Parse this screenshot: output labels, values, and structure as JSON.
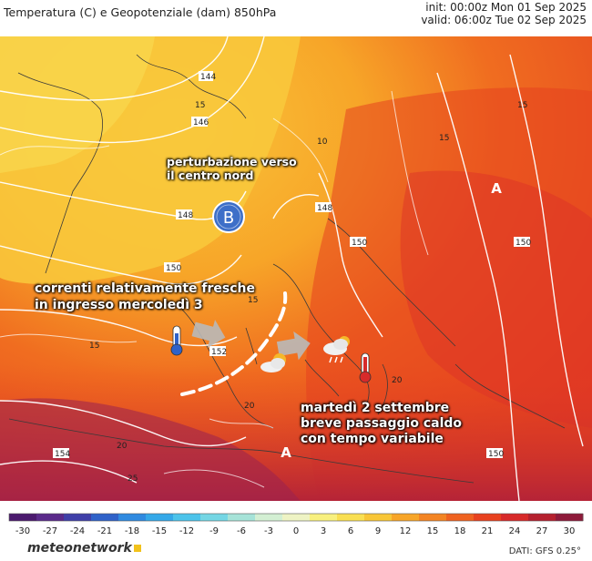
{
  "header": {
    "title": "Temperatura (C) e Geopotenziale (dam) 850hPa",
    "init": "init: 00:00z Mon 01 Sep 2025",
    "valid": "valid: 06:00z Tue 02 Sep 2025"
  },
  "map": {
    "contour_labels": [
      "144",
      "146",
      "148",
      "150",
      "152",
      "154",
      "148",
      "150",
      "150",
      "150",
      "15",
      "10",
      "15",
      "15",
      "15",
      "20",
      "20",
      "20",
      "25",
      "15"
    ],
    "pressure_centers": [
      {
        "label": "B",
        "kind": "low"
      },
      {
        "label": "A",
        "kind": "high"
      },
      {
        "label": "A",
        "kind": "high"
      }
    ],
    "callouts": {
      "perturbation_line1": "perturbazione verso",
      "perturbation_line2": "il centro nord",
      "fresh_line1": "correnti relativamente fresche",
      "fresh_line2": "in ingresso mercoledì 3",
      "warm_line1": "martedì 2 settembre",
      "warm_line2": "breve passaggio caldo",
      "warm_line3": "con tempo variabile"
    },
    "icons": [
      "cold-thermometer-icon",
      "partly-cloudy-icon",
      "rain-cloud-icon",
      "hot-thermometer-icon",
      "arrow-icon",
      "cold-front-dashed-line"
    ]
  },
  "legend": {
    "ticks": [
      "-30",
      "-27",
      "-24",
      "-21",
      "-18",
      "-15",
      "-12",
      "-9",
      "-6",
      "-3",
      "0",
      "3",
      "6",
      "9",
      "12",
      "15",
      "18",
      "21",
      "24",
      "27",
      "30"
    ],
    "colors": [
      "#4b1a6e",
      "#5a2a8a",
      "#3f3fa8",
      "#2f62c9",
      "#2f8ae0",
      "#34a8e8",
      "#4cc3ea",
      "#74d6e4",
      "#a6e3d8",
      "#d3efd3",
      "#eef3c4",
      "#f8f07e",
      "#f9df52",
      "#f8c637",
      "#f7a528",
      "#f38423",
      "#ef6220",
      "#e8411f",
      "#d72a2a",
      "#b5202e",
      "#8e1a3a"
    ]
  },
  "footer": {
    "brand": "meteonetwork",
    "source": "DATI: GFS 0.25°"
  }
}
